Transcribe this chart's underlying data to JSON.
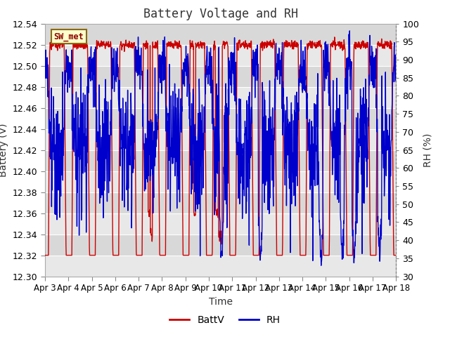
{
  "title": "Battery Voltage and RH",
  "xlabel": "Time",
  "ylabel_left": "Battery (V)",
  "ylabel_right": "RH (%)",
  "annotation": "SW_met",
  "ylim_left": [
    12.3,
    12.54
  ],
  "ylim_right": [
    30,
    100
  ],
  "yticks_left": [
    12.3,
    12.32,
    12.34,
    12.36,
    12.38,
    12.4,
    12.42,
    12.44,
    12.46,
    12.48,
    12.5,
    12.52,
    12.54
  ],
  "yticks_right": [
    30,
    35,
    40,
    45,
    50,
    55,
    60,
    65,
    70,
    75,
    80,
    85,
    90,
    95,
    100
  ],
  "xtick_labels": [
    "Apr 3",
    "Apr 4",
    "Apr 5",
    "Apr 6",
    "Apr 7",
    "Apr 8",
    "Apr 9",
    "Apr 10",
    "Apr 11",
    "Apr 12",
    "Apr 13",
    "Apr 14",
    "Apr 15",
    "Apr 16",
    "Apr 17",
    "Apr 18"
  ],
  "battv_color": "#cc0000",
  "rh_color": "#0000cc",
  "legend_labels": [
    "BattV",
    "RH"
  ],
  "fig_bg_color": "#ffffff",
  "plot_bg_light": "#f0f0f0",
  "plot_bg_dark": "#e0e0e0",
  "title_fontsize": 12,
  "axis_label_fontsize": 10,
  "tick_fontsize": 9
}
